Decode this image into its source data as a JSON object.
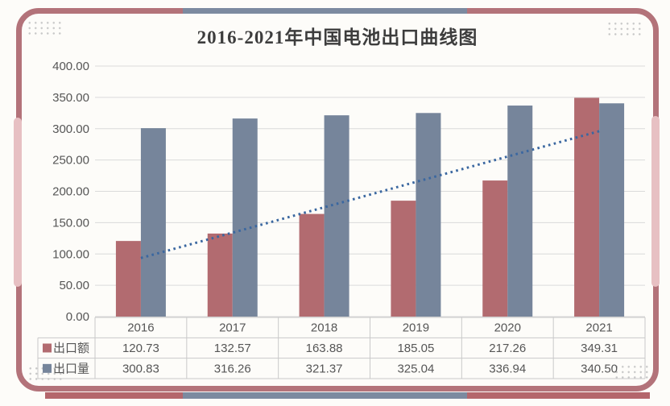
{
  "title": "2016-2021年中国电池出口曲线图",
  "colors": {
    "bar_export_value": "#b26b70",
    "bar_export_volume": "#76859b",
    "trendline": "#3a67a0",
    "frame": "#b3737a",
    "frame_light": "#e7c0c3",
    "frame_gray": "#7c8aa0",
    "gridline": "#dadada",
    "table_border": "#c9c9c9",
    "text": "#565656",
    "title_text": "#3d3d3d"
  },
  "y_axis": {
    "ticks": [
      "0.00",
      "50.00",
      "100.00",
      "150.00",
      "200.00",
      "250.00",
      "300.00",
      "350.00",
      "400.00"
    ],
    "min": 0,
    "max": 400,
    "step": 50
  },
  "chart_data": {
    "type": "bar",
    "title": "2016-2021年中国电池出口曲线图",
    "categories": [
      "2016",
      "2017",
      "2018",
      "2019",
      "2020",
      "2021"
    ],
    "series": [
      {
        "name": "出口额",
        "color": "#b26b70",
        "values": [
          120.73,
          132.57,
          163.88,
          185.05,
          217.26,
          349.31
        ]
      },
      {
        "name": "出口量",
        "color": "#76859b",
        "values": [
          300.83,
          316.26,
          321.37,
          325.04,
          336.94,
          340.5
        ]
      }
    ],
    "trendline": {
      "series": "出口额",
      "style": "dotted",
      "color": "#3a67a0",
      "values": [
        93.5,
        134.0,
        174.5,
        215.0,
        255.5,
        296.0
      ]
    },
    "legend": [
      "出口额",
      "出口量"
    ],
    "legend_position": "data-table-left",
    "xlabel": "",
    "ylabel": "",
    "ylim": [
      0,
      400
    ],
    "ytick_step": 50,
    "grid": true,
    "data_table": true
  },
  "table": {
    "header_row": [
      "2016",
      "2017",
      "2018",
      "2019",
      "2020",
      "2021"
    ],
    "rows": [
      {
        "label": "出口额",
        "swatch": "#b26b70",
        "values": [
          "120.73",
          "132.57",
          "163.88",
          "185.05",
          "217.26",
          "349.31"
        ]
      },
      {
        "label": "出口量",
        "swatch": "#76859b",
        "values": [
          "300.83",
          "316.26",
          "321.37",
          "325.04",
          "336.94",
          "340.50"
        ]
      }
    ]
  }
}
